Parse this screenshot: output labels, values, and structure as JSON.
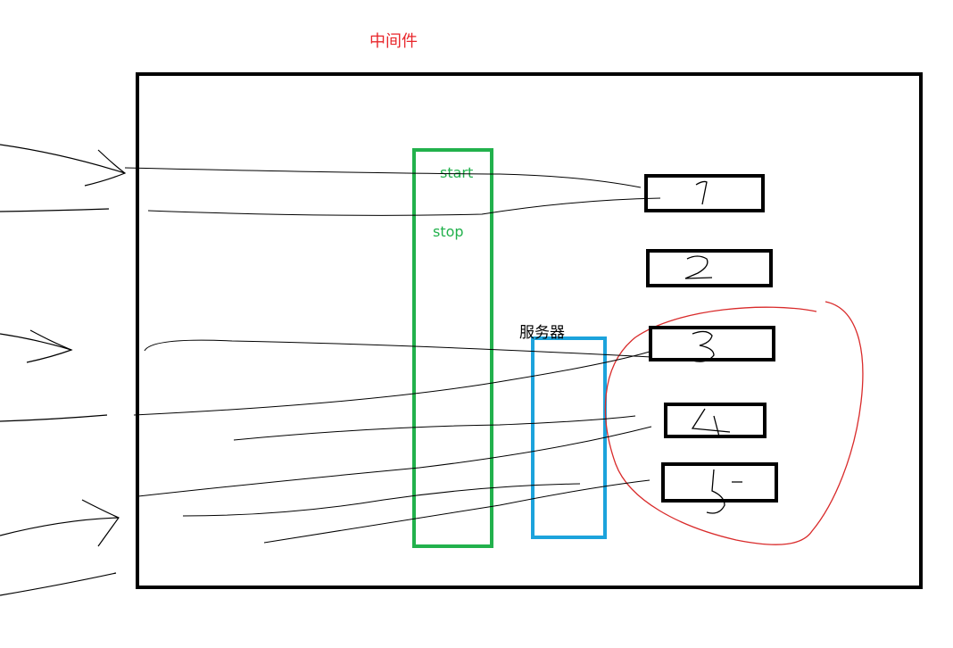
{
  "title": "中间件",
  "colors": {
    "title": "#e8262b",
    "frame": "#000000",
    "middleware_bar": "#22b14c",
    "server_bar": "#1ca3dc",
    "highlight": "#d92b2b",
    "strokes": "#000000"
  },
  "middleware": {
    "start_label": "start",
    "stop_label": "stop"
  },
  "server": {
    "label": "服务器"
  },
  "modules": [
    {
      "label": "1"
    },
    {
      "label": "2"
    },
    {
      "label": "3"
    },
    {
      "label": "4"
    },
    {
      "label": "5"
    }
  ]
}
